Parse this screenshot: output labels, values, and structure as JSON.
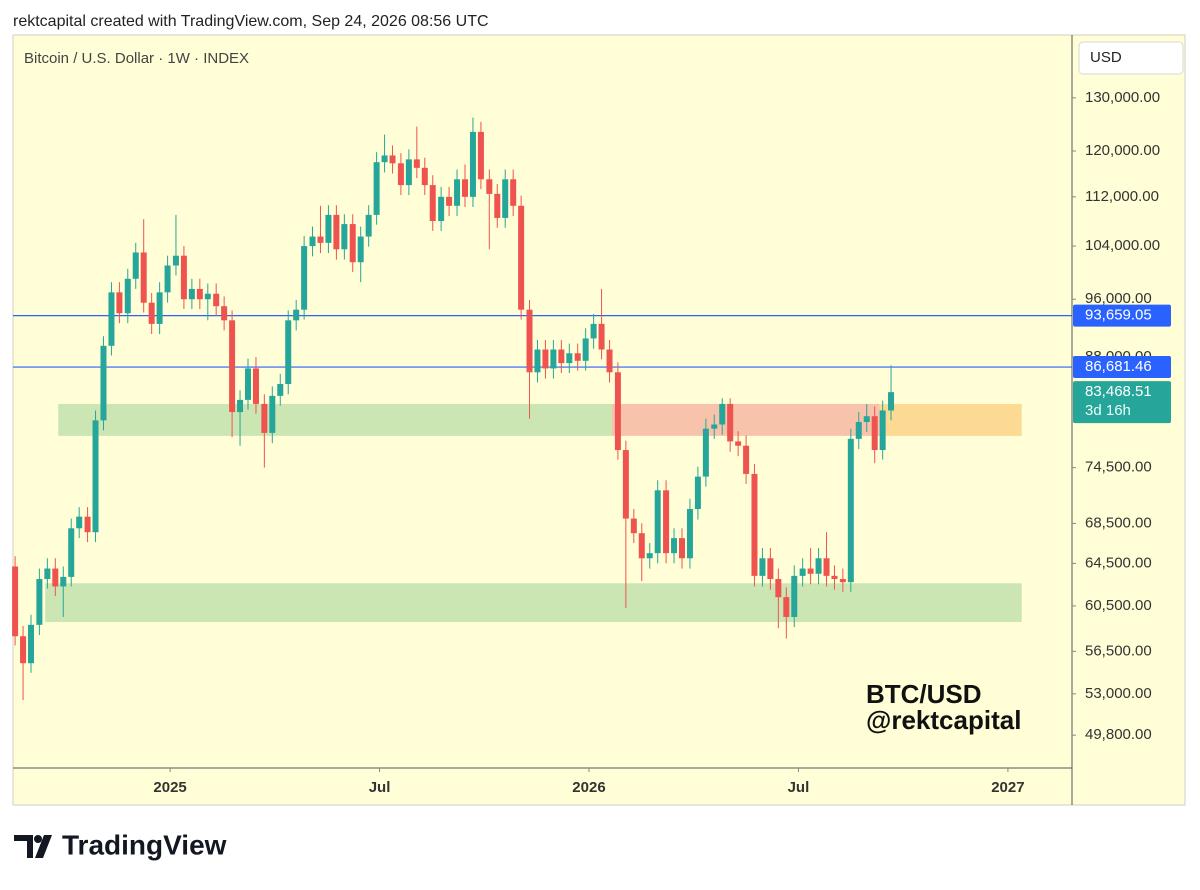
{
  "header": "rektcapital created with TradingView.com, Sep 24, 2026 08:56 UTC",
  "footer": "TradingView",
  "chart_data": {
    "type": "candlestick",
    "title": "Bitcoin / U.S. Dollar · 1W · INDEX",
    "currency": "USD",
    "annotations": [
      "BTC/USD",
      "@rektcapital"
    ],
    "up_color": "#26a69a",
    "down_color": "#ef5350",
    "log_scale": true,
    "xlim": [
      2024.625,
      2027.153
    ],
    "xticks": [
      {
        "value": 2025,
        "label": "2025"
      },
      {
        "value": 2025.5,
        "label": "Jul"
      },
      {
        "value": 2026,
        "label": "2026"
      },
      {
        "value": 2026.5,
        "label": "Jul"
      },
      {
        "value": 2027,
        "label": "2027"
      }
    ],
    "ylim": [
      47400,
      142900
    ],
    "yticks": [
      {
        "value": 130000,
        "label": "130,000.00"
      },
      {
        "value": 120000,
        "label": "120,000.00"
      },
      {
        "value": 112000,
        "label": "112,000.00"
      },
      {
        "value": 104000,
        "label": "104,000.00"
      },
      {
        "value": 96000,
        "label": "96,000.00"
      },
      {
        "value": 88000,
        "label": "88,000.00"
      },
      {
        "value": 74500,
        "label": "74,500.00"
      },
      {
        "value": 68500,
        "label": "68,500.00"
      },
      {
        "value": 64500,
        "label": "64,500.00"
      },
      {
        "value": 60500,
        "label": "60,500.00"
      },
      {
        "value": 56500,
        "label": "56,500.00"
      },
      {
        "value": 53000,
        "label": "53,000.00"
      },
      {
        "value": 49800,
        "label": "49,800.00"
      }
    ],
    "price_lines": [
      {
        "value": 93659.05,
        "label": "93,659.05",
        "color": "#2962ff"
      },
      {
        "value": 86681.46,
        "label": "86,681.46",
        "color": "#2962ff"
      }
    ],
    "last_price": {
      "value": 83468.51,
      "label": "83,468.51",
      "countdown": "3d 16h",
      "color": "#26a69a"
    },
    "zones": [
      {
        "x": [
          2024.733,
          2026.055
        ],
        "y": [
          78150,
          82000
        ],
        "color": "#cbe6b3"
      },
      {
        "x": [
          2026.055,
          2026.694
        ],
        "y": [
          78150,
          82000
        ],
        "color": "#f8c3ab"
      },
      {
        "x": [
          2026.694,
          2027.033
        ],
        "y": [
          78150,
          82000
        ],
        "color": "#fcda94"
      },
      {
        "x": [
          2024.702,
          2027.033
        ],
        "y": [
          59050,
          62600
        ],
        "color": "#cbe6b3"
      }
    ],
    "x": [
      2024.63,
      2024.649,
      2024.668,
      2024.688,
      2024.707,
      2024.726,
      2024.745,
      2024.764,
      2024.783,
      2024.803,
      2024.822,
      2024.841,
      2024.86,
      2024.879,
      2024.899,
      2024.918,
      2024.937,
      2024.956,
      2024.975,
      2024.994,
      2025.014,
      2025.033,
      2025.052,
      2025.071,
      2025.09,
      2025.11,
      2025.129,
      2025.148,
      2025.167,
      2025.186,
      2025.205,
      2025.225,
      2025.244,
      2025.263,
      2025.282,
      2025.301,
      2025.32,
      2025.34,
      2025.359,
      2025.378,
      2025.397,
      2025.416,
      2025.436,
      2025.455,
      2025.474,
      2025.493,
      2025.512,
      2025.531,
      2025.551,
      2025.57,
      2025.589,
      2025.608,
      2025.627,
      2025.647,
      2025.666,
      2025.685,
      2025.704,
      2025.723,
      2025.742,
      2025.762,
      2025.781,
      2025.8,
      2025.819,
      2025.838,
      2025.858,
      2025.877,
      2025.896,
      2025.915,
      2025.934,
      2025.953,
      2025.973,
      2025.992,
      2026.011,
      2026.03,
      2026.049,
      2026.069,
      2026.088,
      2026.107,
      2026.126,
      2026.145,
      2026.164,
      2026.184,
      2026.203,
      2026.222,
      2026.241,
      2026.26,
      2026.279,
      2026.299,
      2026.318,
      2026.337,
      2026.356,
      2026.375,
      2026.395,
      2026.414,
      2026.433,
      2026.452,
      2026.471,
      2026.49,
      2026.51,
      2026.529,
      2026.548,
      2026.567,
      2026.586,
      2026.606,
      2026.625,
      2026.644,
      2026.663,
      2026.682,
      2026.701,
      2026.721
    ],
    "open": [
      64200,
      57800,
      55500,
      58800,
      63000,
      64000,
      62300,
      63200,
      68000,
      69200,
      67600,
      80000,
      89500,
      97000,
      94000,
      99000,
      103000,
      95500,
      92500,
      97000,
      101000,
      102500,
      96000,
      97500,
      96000,
      96800,
      95000,
      93000,
      81000,
      82500,
      86500,
      82000,
      78500,
      83000,
      84500,
      93000,
      94500,
      104000,
      105500,
      104500,
      109000,
      103500,
      107500,
      101500,
      105500,
      109000,
      118000,
      119200,
      117800,
      114000,
      118500,
      117000,
      114000,
      108000,
      112000,
      110500,
      115000,
      112000,
      123500,
      115000,
      112500,
      108500,
      115000,
      110500,
      94500,
      86000,
      89000,
      86500,
      89000,
      87200,
      88500,
      87500,
      90500,
      92500,
      89000,
      86000,
      76500,
      69000,
      67500,
      65000,
      65500,
      72000,
      65500,
      67000,
      65000,
      70000,
      73500,
      79000,
      79500,
      82000,
      77500,
      77000,
      73800,
      63300,
      65000,
      63000,
      61300,
      59500,
      63300,
      64000,
      63500,
      65000,
      63300,
      63000,
      62700,
      77800,
      79800,
      80500,
      76500,
      81200
    ],
    "high": [
      65200,
      58700,
      59700,
      64000,
      65000,
      65000,
      64200,
      69000,
      70200,
      70200,
      81200,
      90800,
      98500,
      98500,
      100500,
      104500,
      108300,
      96900,
      98500,
      102500,
      109000,
      104000,
      99000,
      99000,
      98300,
      98300,
      96400,
      94400,
      83700,
      87800,
      88000,
      83200,
      84200,
      85800,
      94400,
      95900,
      105600,
      107100,
      110500,
      110600,
      110600,
      109100,
      109100,
      107100,
      110600,
      119800,
      123000,
      121000,
      119600,
      120300,
      124500,
      118800,
      115700,
      113700,
      113700,
      116700,
      117600,
      126200,
      125400,
      116700,
      114200,
      116700,
      116700,
      112200,
      95900,
      90300,
      90300,
      90300,
      90300,
      89800,
      89800,
      91900,
      93900,
      97500,
      90300,
      87300,
      77600,
      70000,
      68500,
      66500,
      73100,
      73100,
      68000,
      68000,
      71100,
      74600,
      80200,
      80700,
      82700,
      82700,
      78700,
      78200,
      74900,
      66000,
      66000,
      64000,
      62200,
      64300,
      65000,
      66000,
      66000,
      67600,
      64300,
      64000,
      79000,
      81000,
      82000,
      81700,
      82400,
      86900
    ],
    "low": [
      57000,
      52500,
      54700,
      57900,
      62100,
      61400,
      59500,
      62300,
      67000,
      66600,
      66600,
      78800,
      88200,
      92600,
      92600,
      97500,
      94100,
      91100,
      91100,
      95500,
      99500,
      94600,
      94600,
      94600,
      93000,
      93600,
      91600,
      78000,
      77000,
      81300,
      80800,
      74500,
      77300,
      81800,
      83200,
      91600,
      93100,
      102400,
      102900,
      102900,
      101900,
      101900,
      100000,
      98500,
      103900,
      107400,
      116200,
      116000,
      112300,
      112300,
      115200,
      112300,
      106400,
      106400,
      108800,
      108800,
      110300,
      110300,
      113300,
      103500,
      106900,
      106900,
      108800,
      93100,
      80200,
      84700,
      85200,
      85200,
      85900,
      85900,
      86200,
      86200,
      89100,
      87700,
      84700,
      75400,
      60300,
      66500,
      62800,
      64000,
      64500,
      64500,
      64500,
      64000,
      64000,
      68900,
      72400,
      77800,
      78300,
      76300,
      75800,
      72700,
      62300,
      62300,
      62000,
      58500,
      57600,
      58600,
      62300,
      62500,
      62500,
      62300,
      62000,
      61800,
      61800,
      76600,
      78600,
      75000,
      75400,
      80000
    ],
    "close": [
      57800,
      55500,
      58800,
      63000,
      64000,
      62300,
      63200,
      68000,
      69200,
      67600,
      80000,
      89500,
      97000,
      94000,
      99000,
      103000,
      95500,
      92500,
      97000,
      101000,
      102500,
      96000,
      97500,
      96000,
      96800,
      95000,
      93000,
      81000,
      82500,
      86500,
      82000,
      78500,
      83000,
      84500,
      93000,
      94500,
      104000,
      105500,
      104500,
      109000,
      103500,
      107500,
      101500,
      105500,
      109000,
      118000,
      119200,
      117800,
      114000,
      118500,
      117000,
      114000,
      108000,
      112000,
      110500,
      115000,
      112000,
      123500,
      115000,
      112500,
      108500,
      115000,
      110500,
      94500,
      86000,
      89000,
      86500,
      89000,
      87200,
      88500,
      87500,
      90500,
      92500,
      89000,
      86000,
      76500,
      69000,
      67500,
      65000,
      65500,
      72000,
      65500,
      67000,
      65000,
      70000,
      73500,
      79000,
      79500,
      82000,
      77500,
      77000,
      73800,
      63300,
      65000,
      63000,
      61300,
      59500,
      63300,
      64000,
      63500,
      65000,
      63300,
      63000,
      62700,
      77800,
      79800,
      80500,
      76500,
      81200,
      83468.51
    ]
  }
}
